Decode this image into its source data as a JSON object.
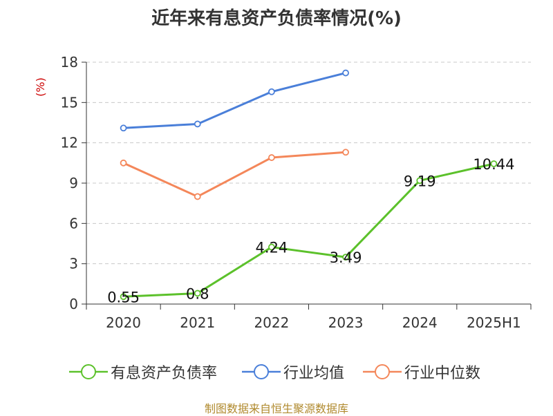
{
  "title": "近年来有息资产负债率情况(%)",
  "source": "制图数据来自恒生聚源数据库",
  "chart_data": {
    "type": "line",
    "title": "近年来有息资产负债率情况(%)",
    "ylabel": "(%)",
    "categories": [
      "2020",
      "2021",
      "2022",
      "2023",
      "2024",
      "2025H1"
    ],
    "y_ticks": [
      "0",
      "3",
      "6",
      "9",
      "12",
      "15",
      "18"
    ],
    "ylim": [
      0,
      18
    ],
    "grid": true,
    "legend_position": "bottom",
    "series": [
      {
        "name": "有息资产负债率",
        "color": "#5cc12b",
        "values": [
          0.55,
          0.8,
          4.24,
          3.49,
          9.19,
          10.44
        ],
        "labels": [
          "0.55",
          "0.8",
          "4.24",
          "3.49",
          "9.19",
          "10.44"
        ]
      },
      {
        "name": "行业均值",
        "color": "#4a7fd9",
        "values": [
          13.1,
          13.4,
          15.8,
          17.2,
          null,
          null
        ]
      },
      {
        "name": "行业中位数",
        "color": "#f4875a",
        "values": [
          10.5,
          8.0,
          10.9,
          11.3,
          null,
          null
        ]
      }
    ]
  }
}
